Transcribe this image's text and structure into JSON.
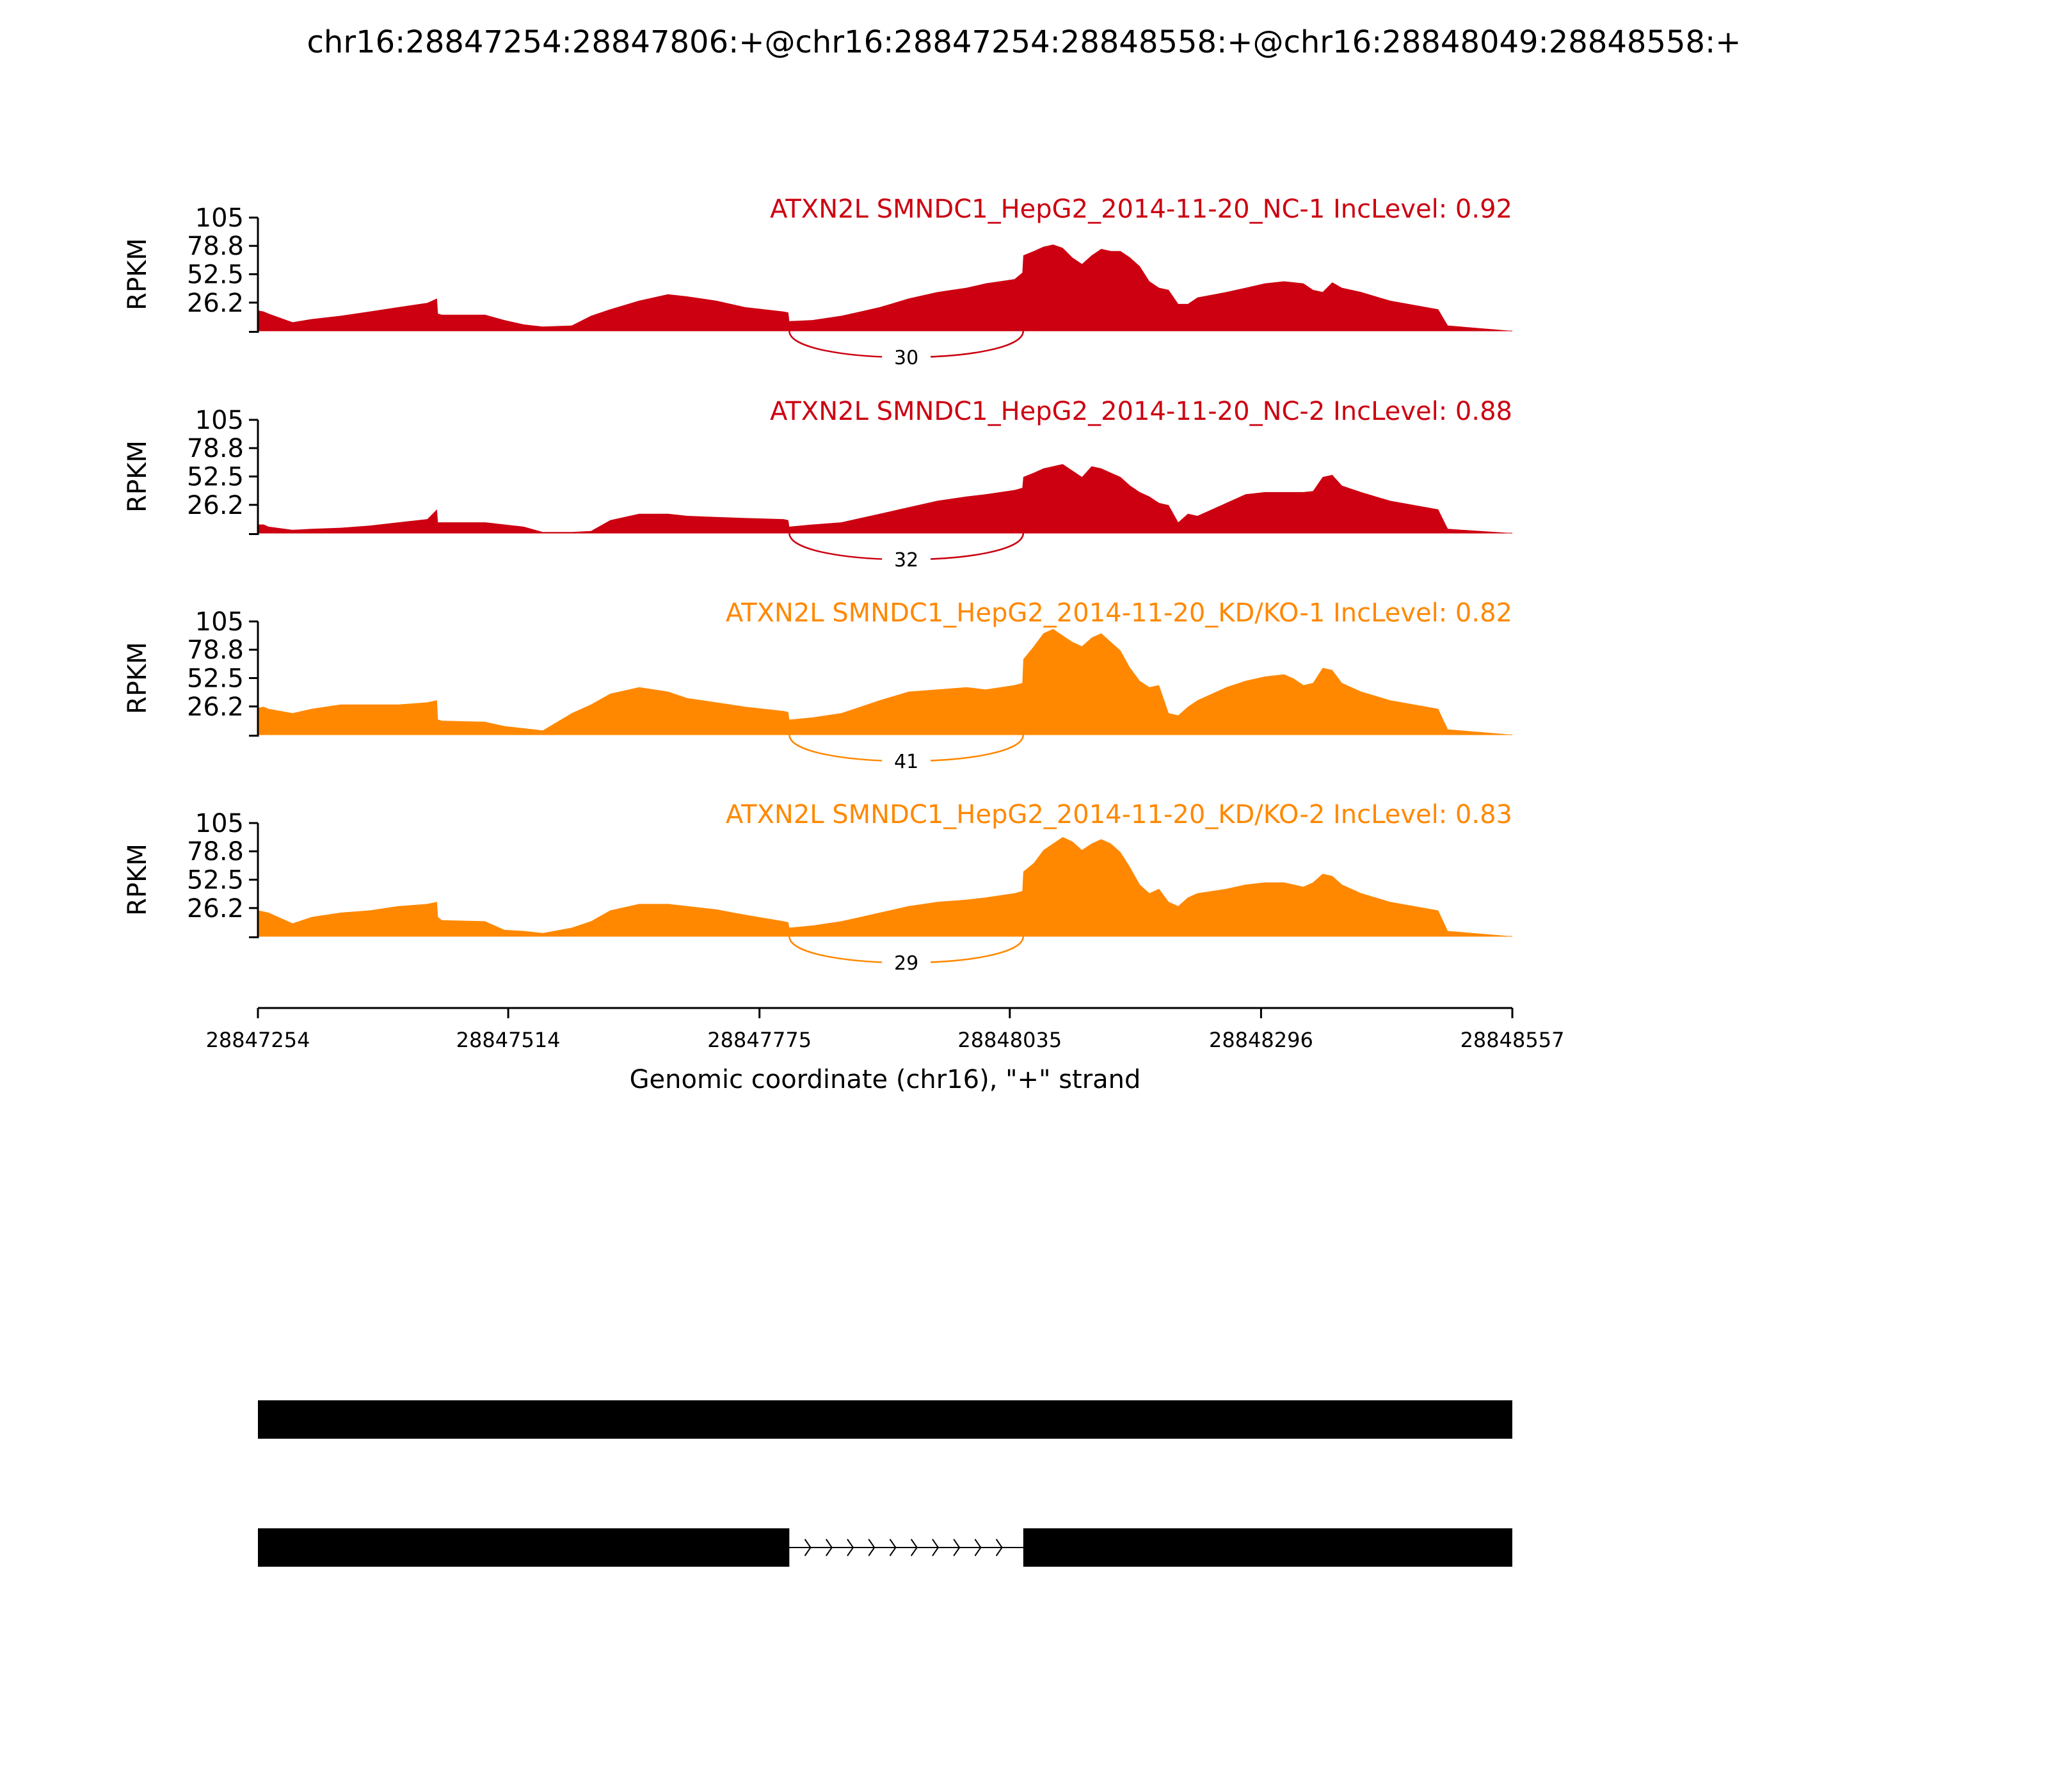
{
  "chart_data": {
    "type": "area",
    "title": "chr16:28847254:28847806:+@chr16:28847254:28848558:+@chr16:28848049:28848558:+",
    "xlabel": "Genomic coordinate (chr16), \"+\" strand",
    "ylabel": "RPKM",
    "xlim": [
      28847254,
      28848557
    ],
    "x_ticks": [
      "28847254",
      "28847514",
      "28847775",
      "28848035",
      "28848296",
      "28848557"
    ],
    "ylim": [
      0,
      105
    ],
    "y_ticks": [
      "105",
      "78.8",
      "52.5",
      "26.2"
    ],
    "grid": false,
    "colors": {
      "NC": "#cc0011",
      "KD": "#ff8800",
      "text": "#000000",
      "gene_model": "#000000"
    },
    "x": [
      28847254,
      28847260,
      28847265,
      28847290,
      28847310,
      28847340,
      28847370,
      28847400,
      28847430,
      28847440,
      28847441,
      28847445,
      28847490,
      28847510,
      28847530,
      28847550,
      28847580,
      28847600,
      28847620,
      28847650,
      28847680,
      28847700,
      28847730,
      28847760,
      28847800,
      28847805,
      28847806,
      28847830,
      28847860,
      28847880,
      28847900,
      28847930,
      28847960,
      28847990,
      28848010,
      28848040,
      28848048,
      28848049,
      28848060,
      28848070,
      28848080,
      28848090,
      28848100,
      28848110,
      28848120,
      28848130,
      28848140,
      28848150,
      28848160,
      28848170,
      28848180,
      28848190,
      28848200,
      28848210,
      28848220,
      28848230,
      28848260,
      28848280,
      28848300,
      28848320,
      28848330,
      28848340,
      28848350,
      28848360,
      28848370,
      28848380,
      28848400,
      28848430,
      28848480,
      28848490,
      28848557
    ],
    "series": [
      {
        "name": "ATXN2L SMNDC1_HepG2_2014-11-20_NC-1 IncLevel: 0.92",
        "group": "NC",
        "inc_level": 0.92,
        "junction": {
          "start": 28847806,
          "end": 28848049,
          "count": "30"
        },
        "values": [
          19,
          18,
          16,
          8,
          11,
          14,
          18,
          22,
          26,
          30,
          16,
          15,
          15,
          10,
          6,
          4,
          5,
          14,
          20,
          28,
          34,
          32,
          28,
          22,
          18,
          17,
          9,
          10,
          14,
          18,
          22,
          30,
          36,
          40,
          44,
          48,
          54,
          70,
          74,
          78,
          80,
          77,
          68,
          62,
          70,
          76,
          74,
          74,
          68,
          60,
          46,
          40,
          38,
          25,
          25,
          31,
          36,
          40,
          44,
          46,
          45,
          44,
          38,
          36,
          45,
          40,
          36,
          28,
          20,
          5,
          0
        ]
      },
      {
        "name": "ATXN2L SMNDC1_HepG2_2014-11-20_NC-2 IncLevel: 0.88",
        "group": "NC",
        "inc_level": 0.88,
        "junction": {
          "start": 28847806,
          "end": 28848049,
          "count": "32"
        },
        "values": [
          8,
          8,
          6,
          3,
          4,
          5,
          7,
          10,
          13,
          22,
          10,
          10,
          10,
          8,
          6,
          1,
          1,
          2,
          12,
          18,
          18,
          16,
          15,
          14,
          13,
          12,
          6,
          8,
          10,
          14,
          18,
          24,
          30,
          34,
          36,
          40,
          42,
          52,
          56,
          60,
          62,
          64,
          58,
          52,
          62,
          60,
          56,
          52,
          44,
          38,
          34,
          28,
          26,
          10,
          18,
          16,
          28,
          36,
          38,
          38,
          38,
          38,
          39,
          52,
          54,
          44,
          38,
          30,
          22,
          4,
          0
        ]
      },
      {
        "name": "ATXN2L SMNDC1_HepG2_2014-11-20_KD/KO-1 IncLevel: 0.82",
        "group": "KD",
        "inc_level": 0.82,
        "junction": {
          "start": 28847806,
          "end": 28848049,
          "count": "41"
        },
        "values": [
          25,
          26,
          24,
          20,
          24,
          28,
          28,
          28,
          30,
          32,
          14,
          13,
          12,
          8,
          6,
          4,
          20,
          28,
          38,
          44,
          40,
          34,
          30,
          26,
          22,
          21,
          14,
          16,
          20,
          26,
          32,
          40,
          42,
          44,
          42,
          46,
          48,
          70,
          82,
          94,
          98,
          92,
          86,
          82,
          90,
          94,
          86,
          78,
          62,
          50,
          44,
          46,
          20,
          18,
          26,
          32,
          44,
          50,
          54,
          56,
          52,
          46,
          48,
          62,
          60,
          48,
          40,
          32,
          24,
          5,
          0
        ]
      },
      {
        "name": "ATXN2L SMNDC1_HepG2_2014-11-20_KD/KO-2 IncLevel: 0.83",
        "group": "KD",
        "inc_level": 0.83,
        "junction": {
          "start": 28847806,
          "end": 28848049,
          "count": "29"
        },
        "values": [
          24,
          23,
          22,
          12,
          18,
          22,
          24,
          28,
          30,
          32,
          18,
          15,
          14,
          6,
          5,
          3,
          8,
          14,
          24,
          30,
          30,
          28,
          25,
          20,
          14,
          13,
          8,
          10,
          14,
          18,
          22,
          28,
          32,
          34,
          36,
          40,
          42,
          60,
          68,
          80,
          86,
          92,
          88,
          80,
          86,
          90,
          86,
          78,
          64,
          48,
          40,
          44,
          32,
          28,
          36,
          40,
          44,
          48,
          50,
          50,
          48,
          46,
          50,
          58,
          56,
          48,
          40,
          32,
          24,
          5,
          0
        ]
      }
    ],
    "isoforms": [
      {
        "exons": [
          [
            28847254,
            28848557
          ]
        ]
      },
      {
        "exons": [
          [
            28847254,
            28847806
          ],
          [
            28848049,
            28848557
          ]
        ]
      }
    ]
  }
}
